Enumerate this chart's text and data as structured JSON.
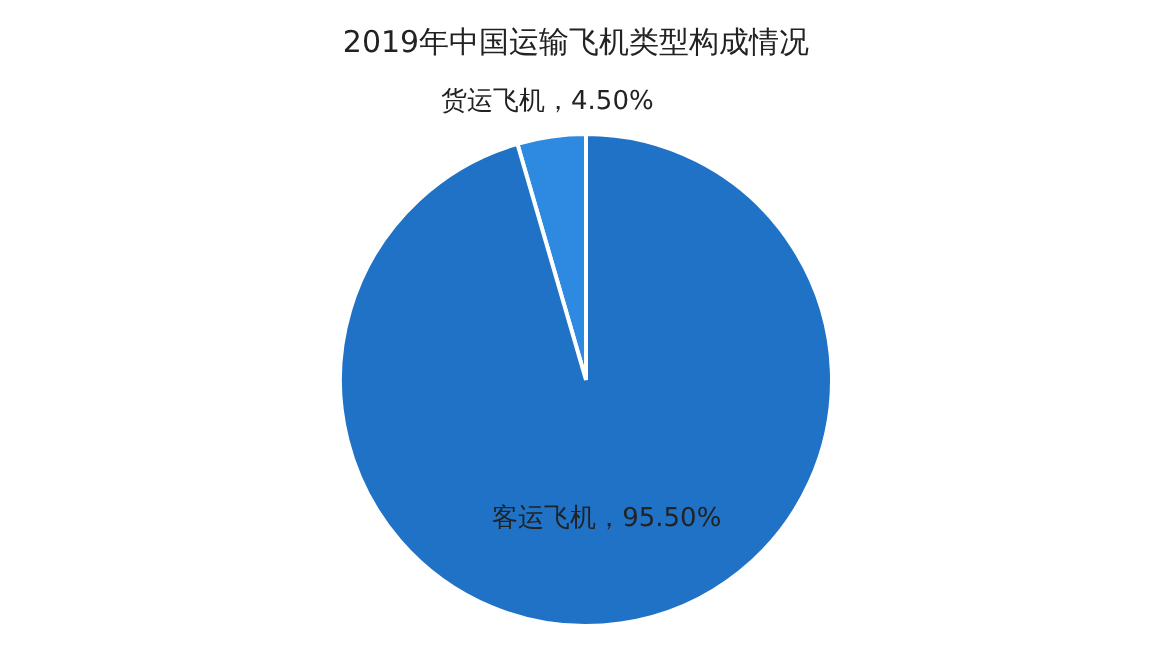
{
  "chart_data": {
    "type": "pie",
    "title": "2019年中国运输飞机类型构成情况",
    "categories": [
      "货运飞机",
      "客运飞机"
    ],
    "values": [
      4.5,
      95.5
    ],
    "value_labels": [
      "，4.50%",
      "，95.50%"
    ],
    "colors": [
      "#2e8ae0",
      "#1f72c6"
    ]
  }
}
